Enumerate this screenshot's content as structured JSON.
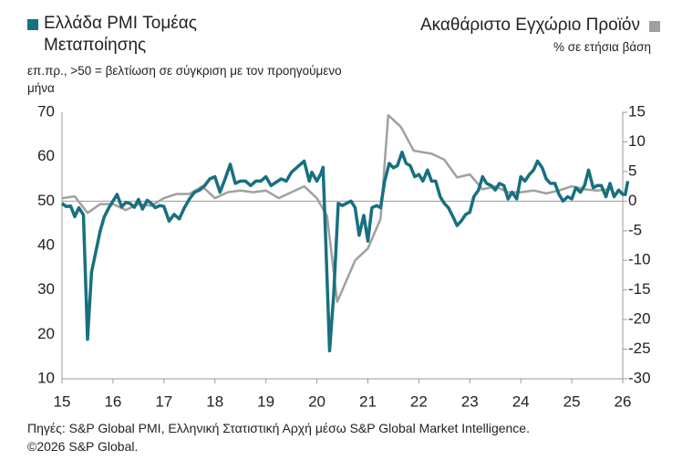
{
  "chart_data": {
    "type": "line",
    "subtitle": "επ.πρ., >50 = βελτίωση σε σύγκριση με τον προηγούμενο μήνα",
    "y2_label": "% σε ετήσια βάση",
    "source": "Πηγές: S&P Global PMI, Ελληνική Στατιστική Αρχή μέσω S&P Global Market Intelligence.",
    "copyright": "©2026 S&P Global.",
    "xlim": [
      15,
      26
    ],
    "xticks": [
      15,
      16,
      17,
      18,
      19,
      20,
      21,
      22,
      23,
      24,
      25,
      26
    ],
    "ylim": [
      10,
      70
    ],
    "yticks": [
      10,
      20,
      30,
      40,
      50,
      60,
      70
    ],
    "y2lim": [
      -30,
      15
    ],
    "y2ticks": [
      -30,
      -25,
      -20,
      -15,
      -10,
      -5,
      0,
      5,
      10,
      15
    ],
    "series": [
      {
        "name": "Ελλάδα PMI Τομέας Μεταποίησης",
        "color": "#17707f",
        "x": [
          15.0,
          15.08,
          15.17,
          15.25,
          15.33,
          15.42,
          15.5,
          15.58,
          15.67,
          15.75,
          15.83,
          15.92,
          16.0,
          16.08,
          16.17,
          16.25,
          16.33,
          16.42,
          16.5,
          16.58,
          16.67,
          16.75,
          16.83,
          16.92,
          17.0,
          17.1,
          17.2,
          17.3,
          17.4,
          17.5,
          17.6,
          17.7,
          17.8,
          17.9,
          18.0,
          18.1,
          18.2,
          18.3,
          18.4,
          18.5,
          18.6,
          18.7,
          18.8,
          18.9,
          19.0,
          19.1,
          19.3,
          19.4,
          19.5,
          19.6,
          19.75,
          19.85,
          19.9,
          20.0,
          20.08,
          20.12,
          20.17,
          20.25,
          20.33,
          20.42,
          20.5,
          20.58,
          20.67,
          20.75,
          20.83,
          20.92,
          21.0,
          21.08,
          21.17,
          21.25,
          21.33,
          21.42,
          21.5,
          21.58,
          21.67,
          21.75,
          21.83,
          21.92,
          22.0,
          22.08,
          22.17,
          22.25,
          22.33,
          22.42,
          22.5,
          22.58,
          22.67,
          22.75,
          22.83,
          22.92,
          23.0,
          23.08,
          23.17,
          23.25,
          23.33,
          23.42,
          23.5,
          23.58,
          23.67,
          23.75,
          23.83,
          23.92,
          24.0,
          24.08,
          24.17,
          24.25,
          24.33,
          24.42,
          24.5,
          24.58,
          24.67,
          24.75,
          24.83,
          24.92,
          25.0,
          25.08,
          25.17,
          25.25,
          25.33,
          25.42,
          25.5,
          25.58,
          25.67,
          25.75,
          25.83,
          25.92,
          26.0,
          26.05,
          26.1
        ],
        "values": [
          49.5,
          48.8,
          48.9,
          46.5,
          48.5,
          46.9,
          18.9,
          34,
          39,
          43.3,
          46.5,
          48.5,
          50.0,
          51.5,
          48.7,
          49.7,
          49.5,
          48.6,
          50.4,
          48.2,
          50.2,
          49.5,
          48.5,
          49,
          48.8,
          45.5,
          47,
          46,
          48.5,
          50.5,
          52,
          52.5,
          53.5,
          55,
          55.5,
          52,
          55,
          58.3,
          54,
          54.5,
          54.5,
          53.5,
          54.5,
          54.5,
          55.5,
          53.5,
          55,
          54.5,
          56.5,
          57.5,
          59,
          54.5,
          56.5,
          54.5,
          56.2,
          57.6,
          42,
          16.3,
          29,
          49.5,
          49,
          49.5,
          50,
          48.5,
          42.3,
          46.8,
          41,
          48.5,
          49,
          48.5,
          54.5,
          58.5,
          57.5,
          58,
          61,
          58.5,
          58,
          55.5,
          56,
          54.5,
          57,
          54.5,
          54.5,
          51,
          49.5,
          48.5,
          46.5,
          44.5,
          45.5,
          47,
          47.5,
          51,
          52.5,
          55.5,
          54,
          53.5,
          52.5,
          54,
          53.5,
          50.5,
          52,
          50.5,
          55.5,
          54.5,
          56,
          57,
          59,
          57.5,
          55,
          54,
          54,
          51.5,
          50,
          51,
          50.5,
          53,
          52,
          53.5,
          57,
          53,
          53.5,
          53.5,
          51,
          54,
          51,
          52.5,
          51.5,
          51.5,
          54.5
        ]
      },
      {
        "name": "Ακαθάριστο Εγχώριο Προϊόν",
        "color": "#a0a0a0",
        "axis": "y2",
        "x": [
          15.0,
          15.25,
          15.5,
          15.75,
          16.0,
          16.25,
          16.5,
          16.75,
          17.0,
          17.25,
          17.5,
          17.75,
          18.0,
          18.25,
          18.5,
          18.75,
          19.0,
          19.25,
          19.5,
          19.75,
          20.0,
          20.2,
          20.4,
          20.75,
          21.0,
          21.25,
          21.4,
          21.65,
          21.9,
          22.25,
          22.5,
          22.75,
          23.0,
          23.25,
          23.5,
          23.75,
          24.0,
          24.25,
          24.5,
          24.75,
          25.0,
          25.25,
          25.5,
          25.75
        ],
        "values": [
          0.5,
          0.8,
          -2,
          -0.5,
          -0.5,
          -1.5,
          -0.5,
          -0.8,
          0.5,
          1.2,
          1.2,
          2.5,
          0.5,
          1.5,
          1.8,
          1.5,
          1.8,
          0.5,
          1.5,
          2.5,
          0.5,
          -2.5,
          -17,
          -10,
          -8,
          -3,
          14.5,
          12.5,
          8.5,
          8,
          7,
          4,
          4.5,
          2,
          2.5,
          1.5,
          1.5,
          1.8,
          1.3,
          1.8,
          2.5,
          2,
          1.8,
          2.0
        ]
      }
    ]
  }
}
